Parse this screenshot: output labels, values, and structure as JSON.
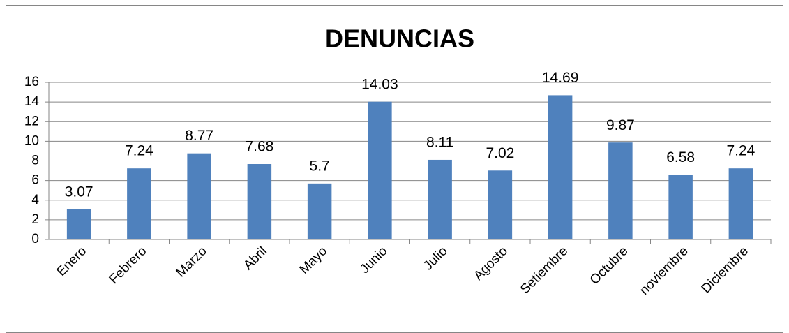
{
  "chart_data": {
    "type": "bar",
    "title": "DENUNCIAS",
    "categories": [
      "Enero",
      "Febrero",
      "Marzo",
      "Abril",
      "Mayo",
      "Junio",
      "Julio",
      "Agosto",
      "Setiembre",
      "Octubre",
      "noviembre",
      "Diciembre"
    ],
    "values": [
      3.07,
      7.24,
      8.77,
      7.68,
      5.7,
      14.03,
      8.11,
      7.02,
      14.69,
      9.87,
      6.58,
      7.24
    ],
    "color": "#4f81bd",
    "ylim": [
      0,
      16
    ],
    "yticks": [
      0,
      2,
      4,
      6,
      8,
      10,
      12,
      14,
      16
    ],
    "grid": true
  }
}
